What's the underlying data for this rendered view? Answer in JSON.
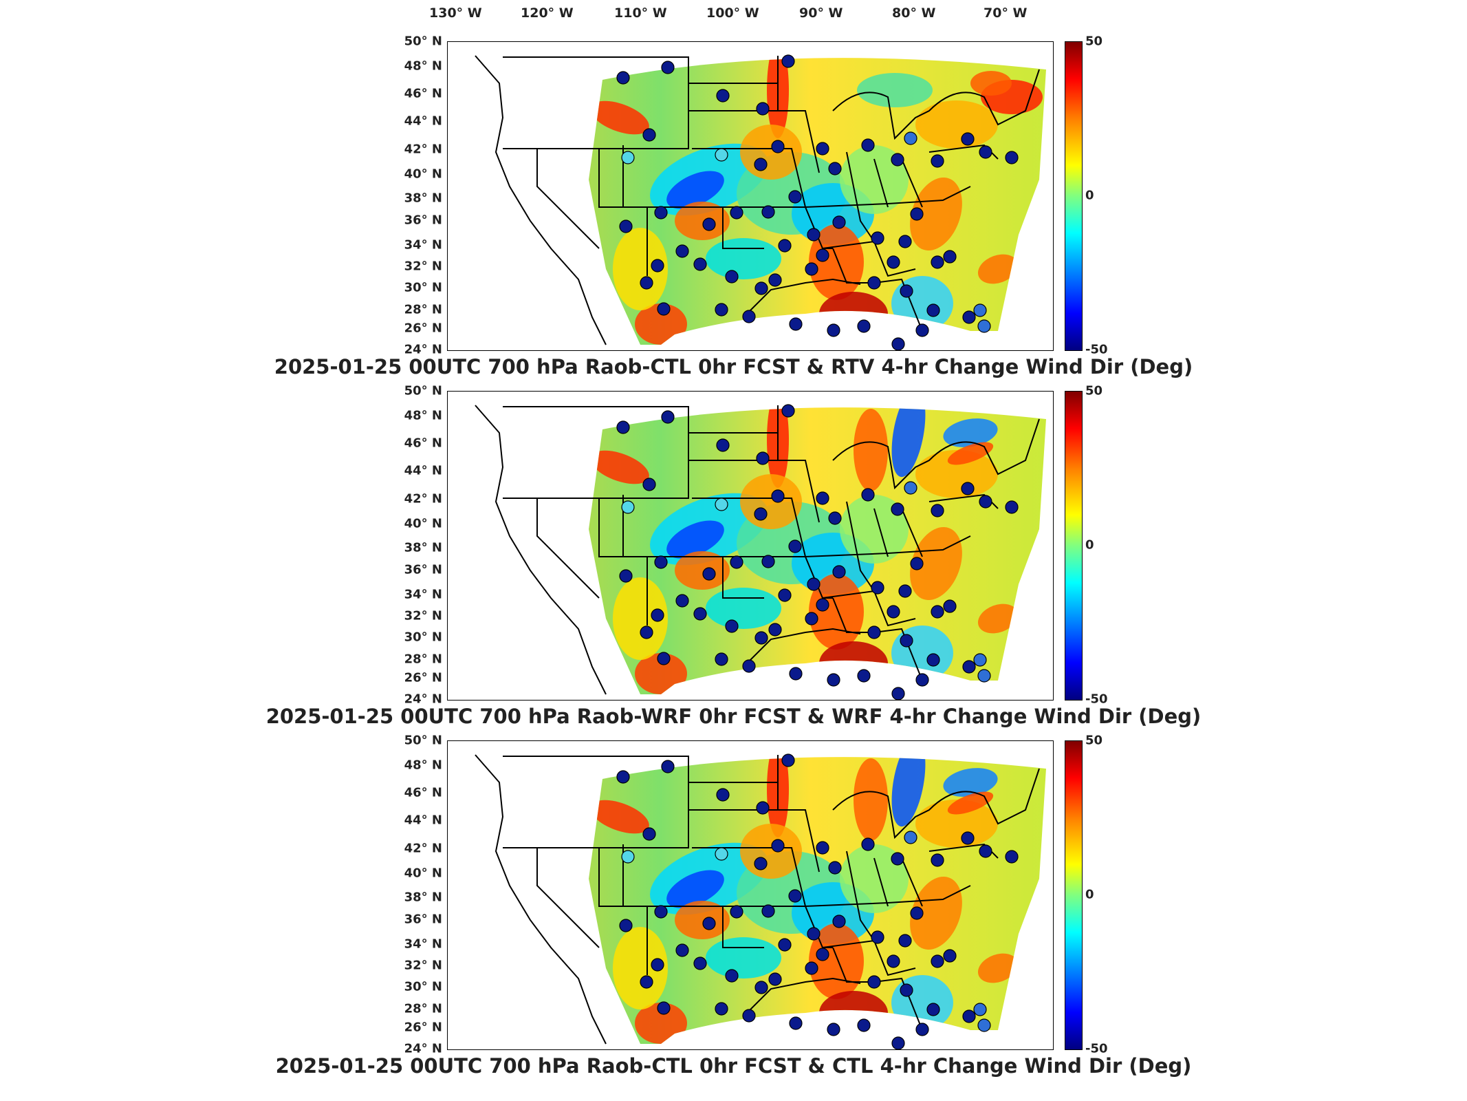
{
  "lon_ticks": [
    {
      "label": "130° W"
    },
    {
      "label": "120° W"
    },
    {
      "label": "110° W"
    },
    {
      "label": "100° W"
    },
    {
      "label": "90° W"
    },
    {
      "label": "80° W"
    },
    {
      "label": "70° W"
    }
  ],
  "lat_ticks": [
    "50° N",
    "48° N",
    "46° N",
    "44° N",
    "42° N",
    "40° N",
    "38° N",
    "36° N",
    "34° N",
    "32° N",
    "30° N",
    "28° N",
    "26° N",
    "24° N"
  ],
  "colorbar": {
    "max_label": "50",
    "mid_label": "0",
    "min_label": "-50"
  },
  "panels": [
    {
      "title": "2025-01-25 00UTC 700 hPa Raob-CTL 0hr FCST & RTV 4-hr Change Wind Dir (Deg)"
    },
    {
      "title": "2025-01-25 00UTC 700 hPa Raob-WRF 0hr FCST & WRF 4-hr Change Wind Dir (Deg)"
    },
    {
      "title": "2025-01-25 00UTC 700 hPa Raob-CTL 0hr FCST & CTL 4-hr Change Wind Dir (Deg)"
    }
  ],
  "colors": {
    "station_fill": "#0a1a8c",
    "station_light": "#2f6fd6",
    "station_cyan": "#54d6e8"
  }
}
